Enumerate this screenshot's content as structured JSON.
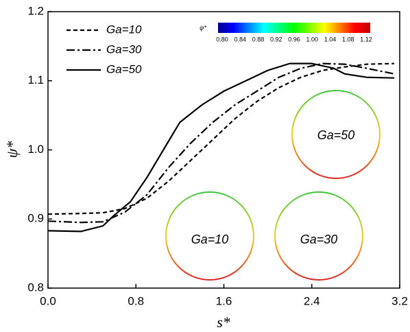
{
  "chart_data": {
    "type": "line",
    "xlabel": "s*",
    "ylabel": "ψ*",
    "xlim": [
      0,
      3.2
    ],
    "ylim": [
      0.8,
      1.2
    ],
    "xticks": [
      {
        "value": 0,
        "label": "0.0"
      },
      0.8,
      1.6,
      2.4,
      3.2
    ],
    "yticks": [
      0.8,
      0.9,
      {
        "value": 1,
        "label": "1.0"
      },
      1.1,
      1.2
    ],
    "series": [
      {
        "name": "Ga=10",
        "color": "#000000",
        "dash": "6,4",
        "x": [
          0,
          0.3,
          0.5,
          0.7,
          0.9,
          1.1,
          1.3,
          1.5,
          1.7,
          1.9,
          2.1,
          2.3,
          2.5,
          2.7,
          2.9,
          3.15
        ],
        "values": [
          0.907,
          0.908,
          0.909,
          0.915,
          0.93,
          0.955,
          0.985,
          1.015,
          1.045,
          1.07,
          1.09,
          1.105,
          1.115,
          1.12,
          1.124,
          1.125
        ]
      },
      {
        "name": "Ga=30",
        "color": "#000000",
        "dash": "12,4,3,4",
        "x": [
          0,
          0.3,
          0.5,
          0.7,
          0.9,
          1.1,
          1.3,
          1.5,
          1.7,
          1.9,
          2.1,
          2.3,
          2.5,
          2.7,
          2.9,
          3.15
        ],
        "values": [
          0.897,
          0.895,
          0.896,
          0.91,
          0.935,
          0.975,
          1.01,
          1.04,
          1.065,
          1.085,
          1.105,
          1.118,
          1.125,
          1.124,
          1.118,
          1.11
        ]
      },
      {
        "name": "Ga=50",
        "color": "#000000",
        "dash": "none",
        "x": [
          0,
          0.3,
          0.5,
          0.6,
          0.75,
          0.9,
          1.05,
          1.2,
          1.4,
          1.6,
          1.8,
          2.0,
          2.2,
          2.4,
          2.6,
          2.7,
          2.9,
          3.15
        ],
        "values": [
          0.883,
          0.882,
          0.89,
          0.905,
          0.925,
          0.96,
          1.0,
          1.04,
          1.065,
          1.085,
          1.1,
          1.115,
          1.125,
          1.125,
          1.118,
          1.11,
          1.105,
          1.104
        ]
      }
    ],
    "colorbar": {
      "label": "ψ*",
      "colors": [
        "#00008f",
        "#0000ff",
        "#0080ff",
        "#00ffff",
        "#00ff80",
        "#00ff00",
        "#80ff00",
        "#ffff00",
        "#ff8000",
        "#ff0000",
        "#c00000"
      ],
      "ticks": [
        {
          "value": 0.8,
          "label": "0.80"
        },
        0.84,
        0.88,
        0.92,
        0.96,
        {
          "value": 1,
          "label": "1.00"
        },
        1.04,
        1.08,
        1.12
      ]
    },
    "annotations": [
      "Ga=50",
      "Ga=10",
      "Ga=30"
    ]
  }
}
